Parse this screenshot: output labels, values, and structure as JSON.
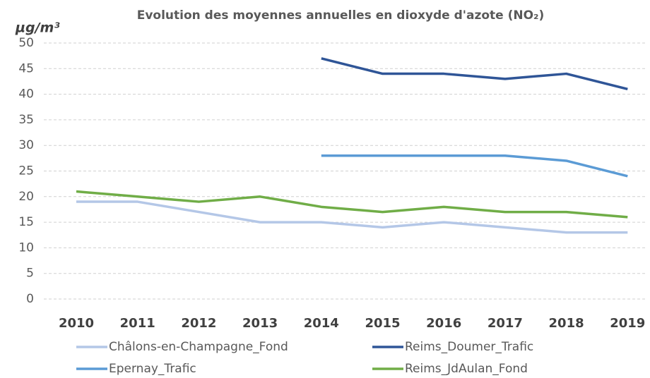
{
  "chart_data": {
    "type": "line",
    "title": "Evolution des moyennes annuelles en dioxyde d'azote (NO₂)",
    "y_label": "µg/m³",
    "categories": [
      "2010",
      "2011",
      "2012",
      "2013",
      "2014",
      "2015",
      "2016",
      "2017",
      "2018",
      "2019"
    ],
    "series": [
      {
        "name": "Châlons-en-Champagne_Fond",
        "color": "#b4c7e7",
        "values": [
          19,
          19,
          17,
          15,
          15,
          14,
          15,
          14,
          13,
          13
        ]
      },
      {
        "name": "Reims_Doumer_Trafic",
        "color": "#2f5597",
        "values": [
          null,
          null,
          null,
          null,
          47,
          44,
          44,
          43,
          44,
          41
        ]
      },
      {
        "name": "Epernay_Trafic",
        "color": "#5b9bd5",
        "values": [
          null,
          null,
          null,
          null,
          28,
          28,
          28,
          28,
          27,
          24
        ]
      },
      {
        "name": "Reims_JdAulan_Fond",
        "color": "#70ad47",
        "values": [
          21,
          20,
          19,
          20,
          18,
          17,
          18,
          17,
          17,
          16
        ]
      }
    ],
    "ylim": [
      0,
      50
    ],
    "yticks": [
      0,
      5,
      10,
      15,
      20,
      25,
      30,
      35,
      40,
      45,
      50
    ],
    "grid": true,
    "legend": "bottom"
  }
}
